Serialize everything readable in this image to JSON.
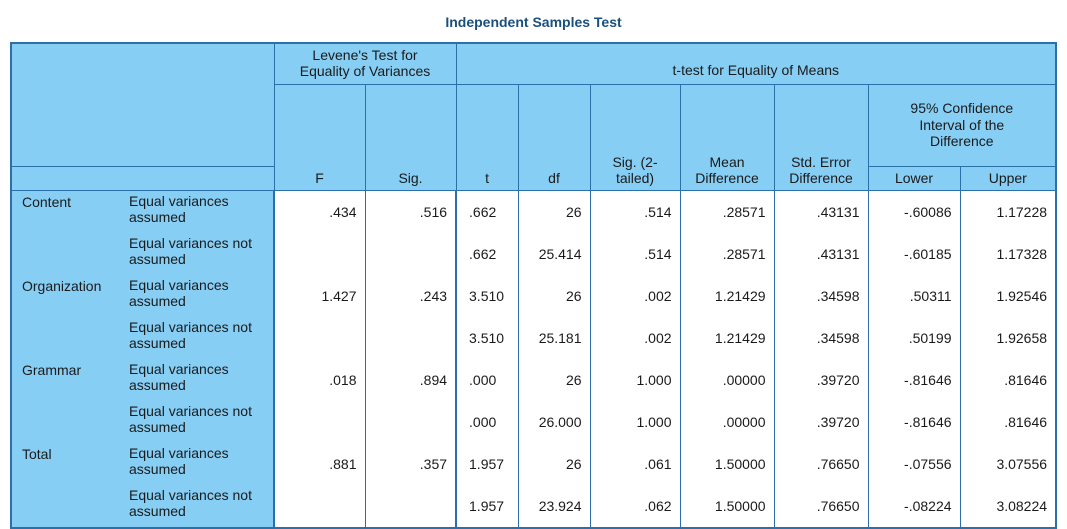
{
  "title": "Independent Samples Test",
  "headers": {
    "levene": "Levene's Test for Equality of Variances",
    "ttest": "t-test for Equality of Means",
    "ci": "95% Confidence Interval of the Difference",
    "F": "F",
    "sig": "Sig.",
    "t": "t",
    "df": "df",
    "sig2": "Sig. (2-tailed)",
    "mean_diff": "Mean Difference",
    "se_diff": "Std. Error Difference",
    "lower": "Lower",
    "upper": "Upper"
  },
  "groups": [
    {
      "name": "Content",
      "rows": [
        {
          "label": "Equal variances assumed",
          "F": ".434",
          "sig": ".516",
          "t": ".662",
          "df": "26",
          "sig2": ".514",
          "md": ".28571",
          "se": ".43131",
          "lower": "-.60086",
          "upper": "1.17228"
        },
        {
          "label": "Equal variances not assumed",
          "F": "",
          "sig": "",
          "t": ".662",
          "df": "25.414",
          "sig2": ".514",
          "md": ".28571",
          "se": ".43131",
          "lower": "-.60185",
          "upper": "1.17328"
        }
      ]
    },
    {
      "name": "Organization",
      "rows": [
        {
          "label": "Equal variances assumed",
          "F": "1.427",
          "sig": ".243",
          "t": "3.510",
          "df": "26",
          "sig2": ".002",
          "md": "1.21429",
          "se": ".34598",
          "lower": ".50311",
          "upper": "1.92546"
        },
        {
          "label": "Equal variances not assumed",
          "F": "",
          "sig": "",
          "t": "3.510",
          "df": "25.181",
          "sig2": ".002",
          "md": "1.21429",
          "se": ".34598",
          "lower": ".50199",
          "upper": "1.92658"
        }
      ]
    },
    {
      "name": "Grammar",
      "rows": [
        {
          "label": "Equal variances assumed",
          "F": ".018",
          "sig": ".894",
          "t": ".000",
          "df": "26",
          "sig2": "1.000",
          "md": ".00000",
          "se": ".39720",
          "lower": "-.81646",
          "upper": ".81646"
        },
        {
          "label": "Equal variances not assumed",
          "F": "",
          "sig": "",
          "t": ".000",
          "df": "26.000",
          "sig2": "1.000",
          "md": ".00000",
          "se": ".39720",
          "lower": "-.81646",
          "upper": ".81646"
        }
      ]
    },
    {
      "name": "Total",
      "rows": [
        {
          "label": "Equal variances assumed",
          "F": ".881",
          "sig": ".357",
          "t": "1.957",
          "df": "26",
          "sig2": ".061",
          "md": "1.50000",
          "se": ".76650",
          "lower": "-.07556",
          "upper": "3.07556"
        },
        {
          "label": "Equal variances not assumed",
          "F": "",
          "sig": "",
          "t": "1.957",
          "df": "23.924",
          "sig2": ".062",
          "md": "1.50000",
          "se": ".76650",
          "lower": "-.08224",
          "upper": "3.08224"
        }
      ]
    }
  ]
}
